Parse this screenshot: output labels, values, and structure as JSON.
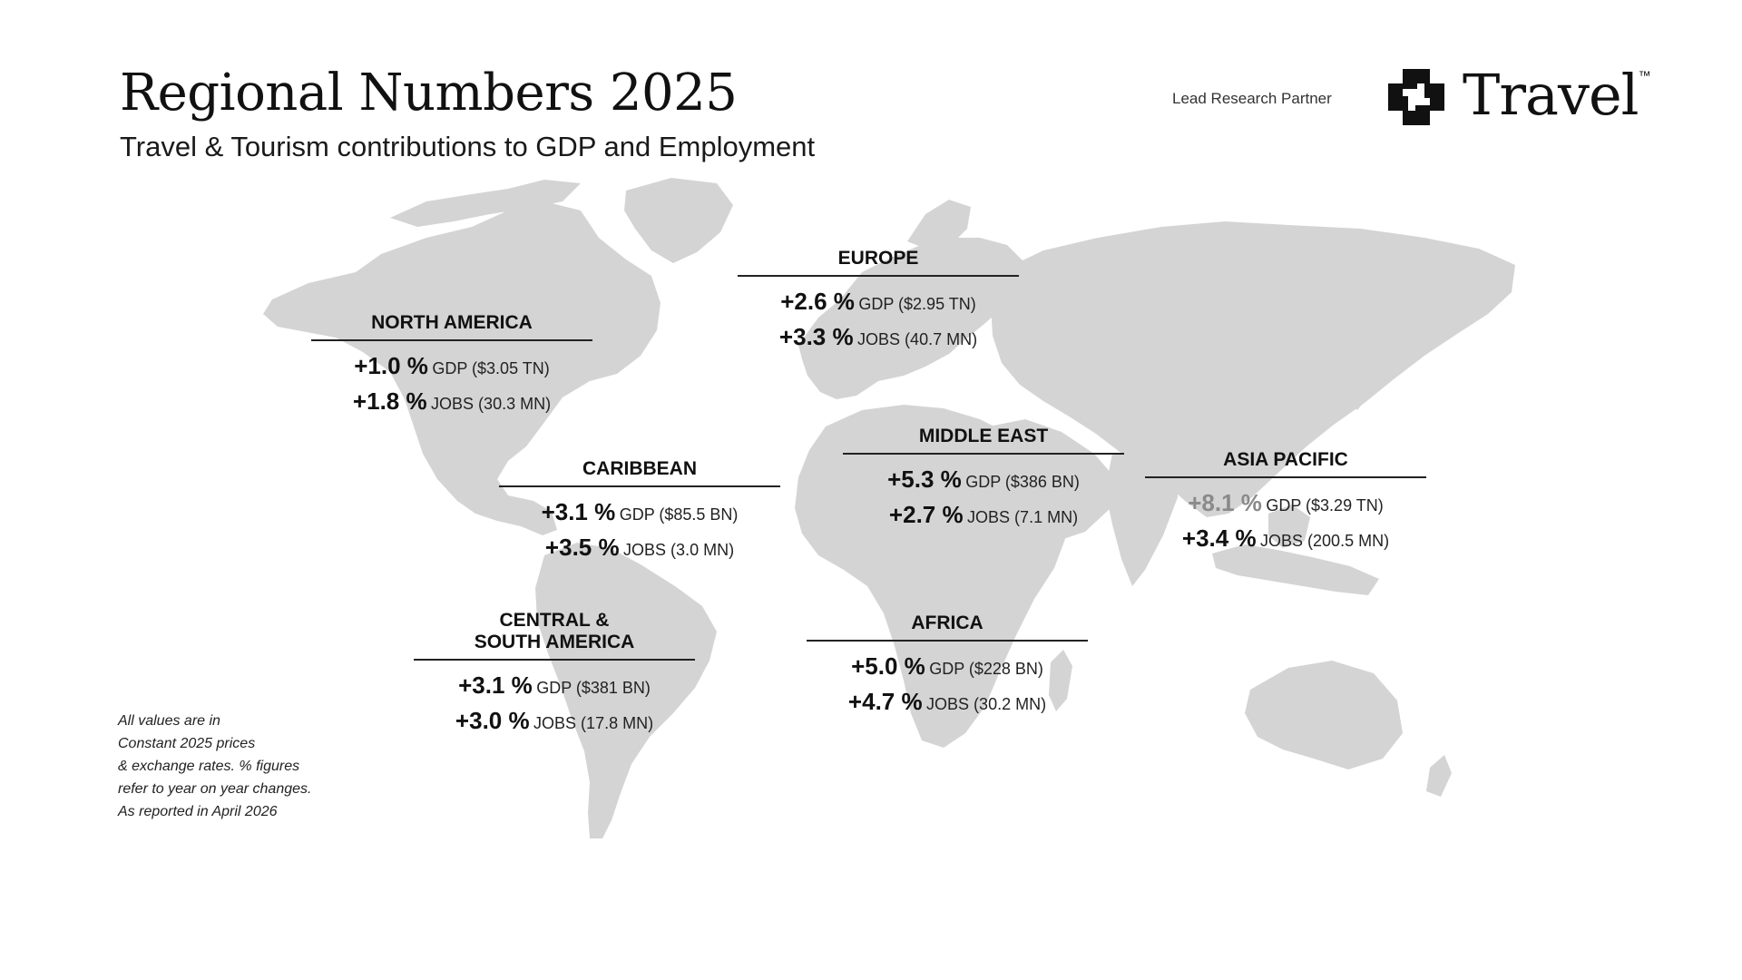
{
  "header": {
    "title": "Regional Numbers 2025",
    "subtitle": "Travel & Tourism contributions to GDP and Employment"
  },
  "partner": {
    "label": "Lead Research Partner",
    "logo_text": "Travel",
    "logo_tm": "™"
  },
  "colors": {
    "land": "#d4d4d4",
    "text": "#111111",
    "faded_value": "#8a8a8a"
  },
  "regions": [
    {
      "name": "NORTH AMERICA",
      "gdp_pct": "+1.0 %",
      "gdp_label": "GDP ($3.05 TN)",
      "jobs_pct": "+1.8 %",
      "jobs_label": "JOBS (30.3 MN)"
    },
    {
      "name": "EUROPE",
      "gdp_pct": "+2.6 %",
      "gdp_label": "GDP ($2.95 TN)",
      "jobs_pct": "+3.3 %",
      "jobs_label": "JOBS (40.7 MN)"
    },
    {
      "name": "CARIBBEAN",
      "gdp_pct": "+3.1 %",
      "gdp_label": "GDP ($85.5 BN)",
      "jobs_pct": "+3.5 %",
      "jobs_label": "JOBS (3.0 MN)"
    },
    {
      "name": "MIDDLE EAST",
      "gdp_pct": "+5.3 %",
      "gdp_label": "GDP ($386 BN)",
      "jobs_pct": "+2.7 %",
      "jobs_label": "JOBS (7.1 MN)"
    },
    {
      "name": "ASIA PACIFIC",
      "gdp_pct": "+8.1 %",
      "gdp_label": "GDP ($3.29 TN)",
      "jobs_pct": "+3.4 %",
      "jobs_label": "JOBS (200.5 MN)"
    },
    {
      "name_line1": "CENTRAL &",
      "name_line2": "SOUTH AMERICA",
      "gdp_pct": "+3.1 %",
      "gdp_label": "GDP ($381 BN)",
      "jobs_pct": "+3.0 %",
      "jobs_label": "JOBS (17.8 MN)"
    },
    {
      "name": "AFRICA",
      "gdp_pct": "+5.0 %",
      "gdp_label": "GDP ($228 BN)",
      "jobs_pct": "+4.7 %",
      "jobs_label": "JOBS (30.2 MN)"
    }
  ],
  "note": {
    "lines": [
      "All values are in",
      "Constant 2025 prices",
      "& exchange rates. % figures",
      "refer to year on year changes.",
      "As reported in April 2026"
    ]
  }
}
